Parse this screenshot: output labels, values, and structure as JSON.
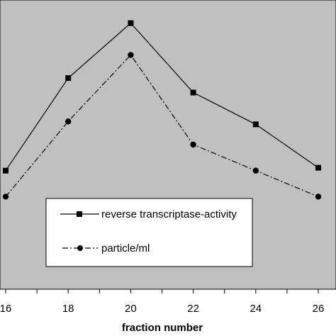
{
  "chart_data": {
    "type": "line",
    "xlabel": "fraction number",
    "ylabel": "",
    "x": [
      16,
      18,
      20,
      22,
      24,
      26
    ],
    "xlim": [
      16,
      26
    ],
    "ylim": [
      0,
      100
    ],
    "grid": false,
    "legend_position": "bottom-center",
    "background_color": "#c0c0c0",
    "series": [
      {
        "name": "reverse transcriptase-activity",
        "values": [
          41,
          73,
          92,
          68,
          57,
          42
        ],
        "line_style": "solid",
        "marker": "square",
        "color": "#000000"
      },
      {
        "name": "particle/ml",
        "values": [
          32,
          58,
          81,
          50,
          41,
          32
        ],
        "line_style": "dash-dot",
        "marker": "circle",
        "color": "#000000"
      }
    ]
  }
}
